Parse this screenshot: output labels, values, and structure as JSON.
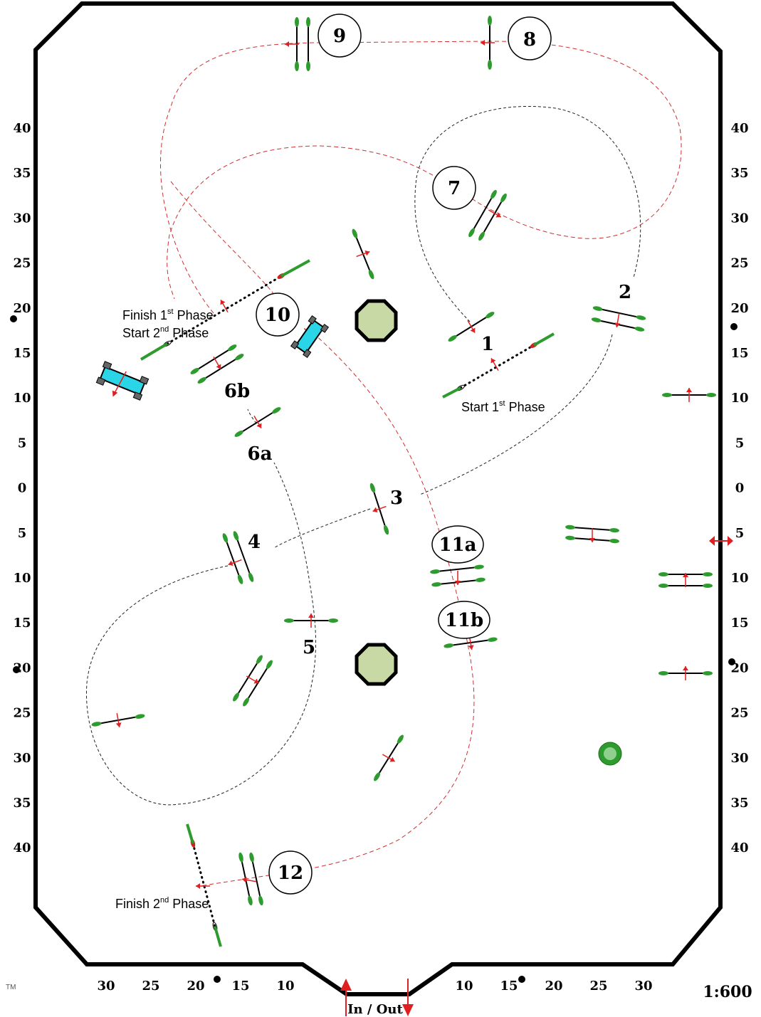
{
  "diagram": {
    "scale": "1:600",
    "entrance_label": "In / Out",
    "trademark": "TM",
    "left_ruler": [
      "40",
      "35",
      "30",
      "25",
      "20",
      "15",
      "10",
      "5",
      "0",
      "5",
      "10",
      "15",
      "20",
      "25",
      "30",
      "35",
      "40"
    ],
    "right_ruler": [
      "40",
      "35",
      "30",
      "25",
      "20",
      "15",
      "10",
      "5",
      "0",
      "5",
      "10",
      "15",
      "20",
      "25",
      "30",
      "35",
      "40"
    ],
    "bottom_ruler_left": [
      "30",
      "25",
      "20",
      "15",
      "10"
    ],
    "bottom_ruler_right": [
      "10",
      "15",
      "20",
      "25",
      "30"
    ],
    "numbers": {
      "n1": "1",
      "n2": "2",
      "n3": "3",
      "n4": "4",
      "n5": "5",
      "n6a": "6a",
      "n6b": "6b",
      "n7": "7",
      "n8": "8",
      "n9": "9",
      "n10": "10",
      "n11a": "11a",
      "n11b": "11b",
      "n12": "12"
    },
    "labels": {
      "finish1_a": "Finish 1",
      "finish1_sup": "st",
      "finish1_b": " Phase",
      "start2_a": "Start 2",
      "start2_sup": "nd",
      "start2_b": " Phase",
      "start1_a": "Start 1",
      "start1_sup": "st",
      "start1_b": " Phase",
      "finish2_a": "Finish 2",
      "finish2_sup": "nd",
      "finish2_b": " Phase"
    }
  }
}
